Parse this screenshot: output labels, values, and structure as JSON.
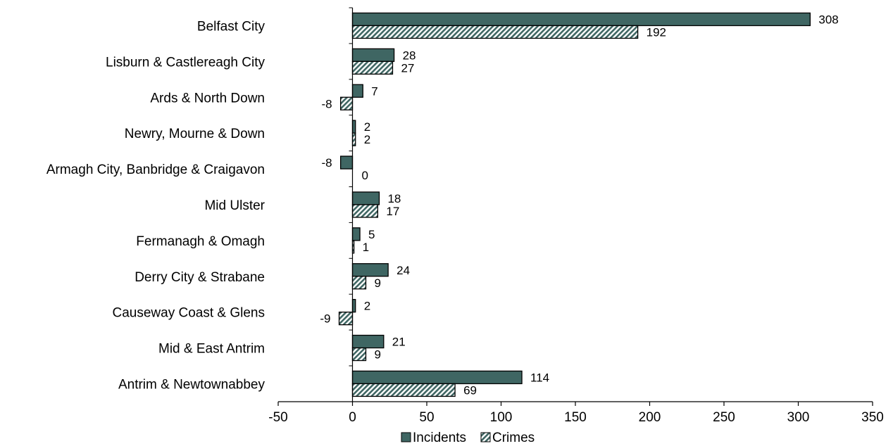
{
  "chart_data": {
    "type": "bar",
    "orientation": "horizontal",
    "categories": [
      "Belfast City",
      "Lisburn & Castlereagh City",
      "Ards & North Down",
      "Newry, Mourne & Down",
      "Armagh City, Banbridge & Craigavon",
      "Mid Ulster",
      "Fermanagh & Omagh",
      "Derry City & Strabane",
      "Causeway Coast & Glens",
      "Mid & East Antrim",
      "Antrim & Newtownabbey"
    ],
    "series": [
      {
        "name": "Incidents",
        "color": "#3f6663",
        "pattern": "solid",
        "values": [
          308,
          28,
          7,
          2,
          -8,
          18,
          5,
          24,
          2,
          21,
          114
        ],
        "labels": [
          "308",
          "28",
          "7",
          "2",
          "-8",
          "18",
          "5",
          "24",
          "2",
          "21",
          "114"
        ]
      },
      {
        "name": "Crimes",
        "color": "#3f6663",
        "pattern": "diagonal-hatch",
        "values": [
          192,
          27,
          -8,
          2,
          0,
          17,
          1,
          9,
          -9,
          9,
          69
        ],
        "labels": [
          "192",
          "27",
          "-8",
          "2",
          "0",
          "17",
          "1",
          "9",
          "-9",
          "9",
          "69"
        ]
      }
    ],
    "xlim": [
      -50,
      350
    ],
    "xticks": [
      -50,
      0,
      50,
      100,
      150,
      200,
      250,
      300,
      350
    ],
    "xtick_labels": [
      "-50",
      "0",
      "50",
      "100",
      "150",
      "200",
      "250",
      "300",
      "350"
    ],
    "grid": false,
    "legend_position": "bottom-center",
    "title": "",
    "xlabel": "",
    "ylabel": ""
  }
}
